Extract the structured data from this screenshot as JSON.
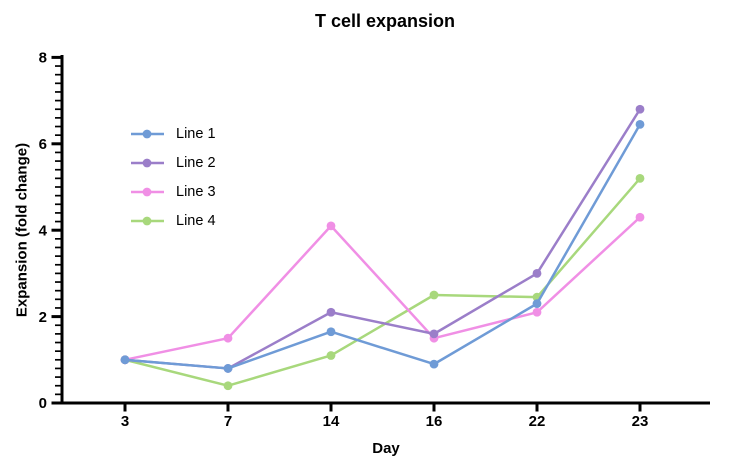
{
  "chart_data": {
    "type": "line",
    "title": "T cell expansion",
    "xlabel": "Day",
    "ylabel": "Expansion (fold change)",
    "categories": [
      "3",
      "7",
      "14",
      "16",
      "22",
      "23"
    ],
    "ylim": [
      0,
      8
    ],
    "yticks": [
      0,
      2,
      4,
      6,
      8
    ],
    "y_minor_step": 0.2,
    "grid": false,
    "legend_position": "upper-left-inside",
    "axis_color": "#000000",
    "series": [
      {
        "name": "Line 1",
        "color": "#6F9BD6",
        "values": [
          1.0,
          0.8,
          1.65,
          0.9,
          2.3,
          6.45
        ]
      },
      {
        "name": "Line 2",
        "color": "#9B7EC9",
        "values": [
          1.0,
          0.8,
          2.1,
          1.6,
          3.0,
          6.8
        ]
      },
      {
        "name": "Line 3",
        "color": "#F08FE5",
        "values": [
          1.0,
          1.5,
          4.1,
          1.5,
          2.1,
          4.3
        ]
      },
      {
        "name": "Line 4",
        "color": "#A8D87C",
        "values": [
          1.0,
          0.4,
          1.1,
          2.5,
          2.45,
          5.2
        ]
      }
    ]
  }
}
